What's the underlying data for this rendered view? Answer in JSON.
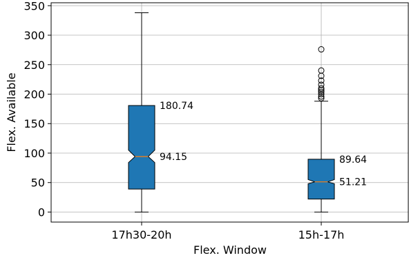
{
  "chart_data": {
    "type": "box",
    "title": "",
    "xlabel": "Flex. Window",
    "ylabel": "Flex. Available",
    "ylim": [
      -17,
      355
    ],
    "yticks": [
      0,
      50,
      100,
      150,
      200,
      250,
      300,
      350
    ],
    "grid": true,
    "notched": true,
    "box_color": "#1f77b4",
    "median_color": "#ff7f0e",
    "categories": [
      "17h30-20h",
      "15h-17h"
    ],
    "boxes": [
      {
        "category": "17h30-20h",
        "whisker_low": 0,
        "q1": 39,
        "median": 94.15,
        "q3": 180.74,
        "whisker_high": 338,
        "notch_low": 84,
        "notch_high": 105,
        "outliers": [],
        "labels": [
          "180.74",
          "94.15"
        ]
      },
      {
        "category": "15h-17h",
        "whisker_low": 0,
        "q1": 22,
        "median": 51.21,
        "q3": 89.64,
        "whisker_high": 188,
        "notch_low": 48,
        "notch_high": 55,
        "outliers": [
          193,
          196,
          200,
          204,
          207,
          210,
          216,
          223,
          231,
          240,
          276
        ],
        "labels": [
          "89.64",
          "51.21"
        ]
      }
    ]
  }
}
